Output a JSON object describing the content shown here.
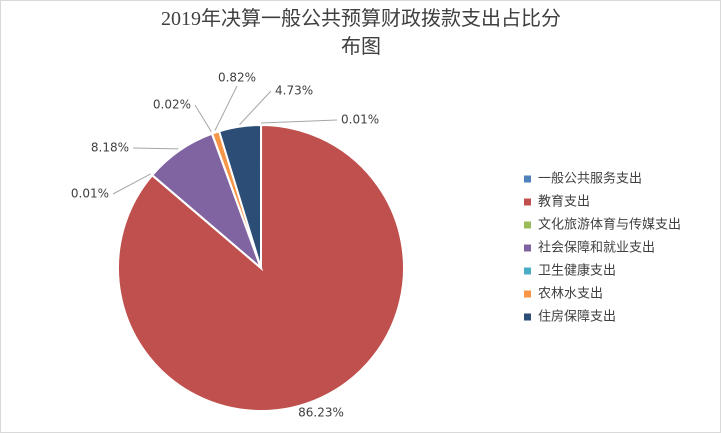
{
  "chart_data": {
    "type": "pie",
    "title": "2019年决算一般公共预算财政拨款支出占比分布图",
    "categories": [
      "一般公共服务支出",
      "教育支出",
      "文化旅游体育与传媒支出",
      "社会保障和就业支出",
      "卫生健康支出",
      "农林水支出",
      "住房保障支出"
    ],
    "values": [
      0.01,
      86.23,
      0.01,
      8.18,
      0.02,
      0.82,
      4.73
    ],
    "value_labels": [
      "0.01%",
      "86.23%",
      "0.01%",
      "8.18%",
      "0.02%",
      "0.82%",
      "4.73%"
    ],
    "colors": [
      "#4f81bd",
      "#c0504d",
      "#9bbb59",
      "#8064a2",
      "#4bacc6",
      "#f79646",
      "#2c4d75"
    ],
    "legend": "right"
  }
}
